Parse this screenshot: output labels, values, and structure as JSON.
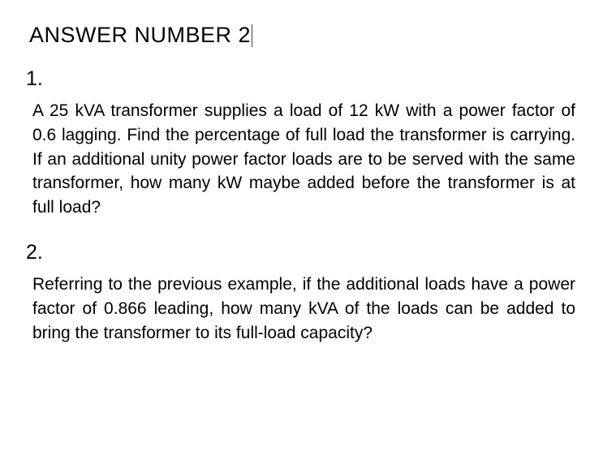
{
  "heading": "ANSWER NUMBER 2",
  "q1": {
    "number": "1.",
    "text": "A 25 kVA transformer supplies a load of 12 kW with a power factor of 0.6 lagging. Find the percentage of full load the transformer is carrying. If an additional unity power factor loads are to be served with the same transformer, how many kW maybe added before the transformer is at full load?"
  },
  "q2": {
    "number": "2.",
    "text": "Referring to the previous example, if the additional loads have a power factor of 0.866 leading, how many kVA of the loads can be added to bring the transformer to its full-load capacity?"
  },
  "styles": {
    "background_color": "#ffffff",
    "text_color": "#000000",
    "font_family": "Arial",
    "heading_fontsize": 27,
    "number_fontsize": 25,
    "body_fontsize": 21,
    "line_height": 1.42,
    "text_align": "justify"
  }
}
